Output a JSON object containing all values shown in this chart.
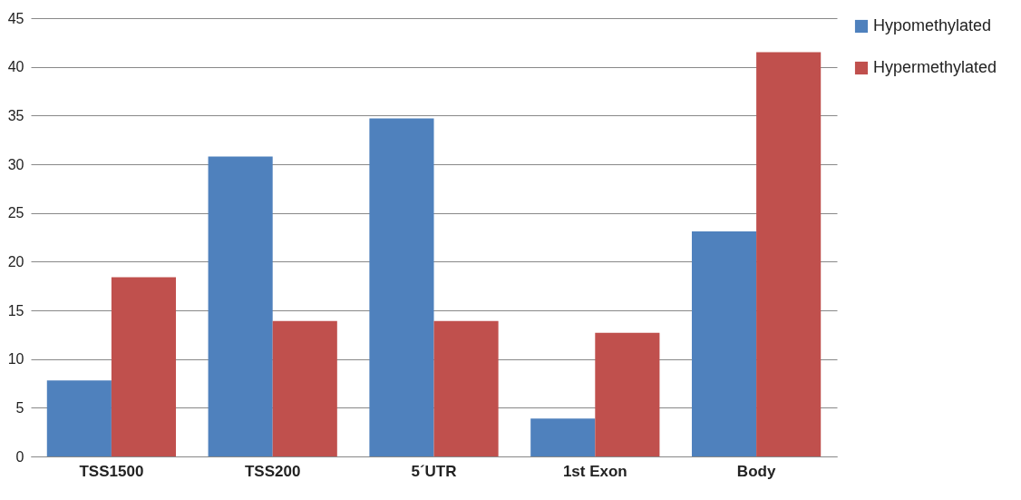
{
  "chart_data": {
    "type": "bar",
    "categories": [
      "TSS1500",
      "TSS200",
      "5´UTR",
      "1st Exon",
      "Body"
    ],
    "series": [
      {
        "name": "Hypomethylated",
        "color": "#4f81bd",
        "values": [
          7.8,
          30.8,
          34.7,
          3.9,
          23.1
        ]
      },
      {
        "name": "Hypermethylated",
        "color": "#c0504d",
        "values": [
          18.4,
          13.9,
          13.9,
          12.7,
          41.5
        ]
      }
    ],
    "ylim": [
      0,
      45
    ],
    "yticks": [
      0,
      5,
      10,
      15,
      20,
      25,
      30,
      35,
      40,
      45
    ],
    "grid": "y",
    "legend": "right"
  }
}
